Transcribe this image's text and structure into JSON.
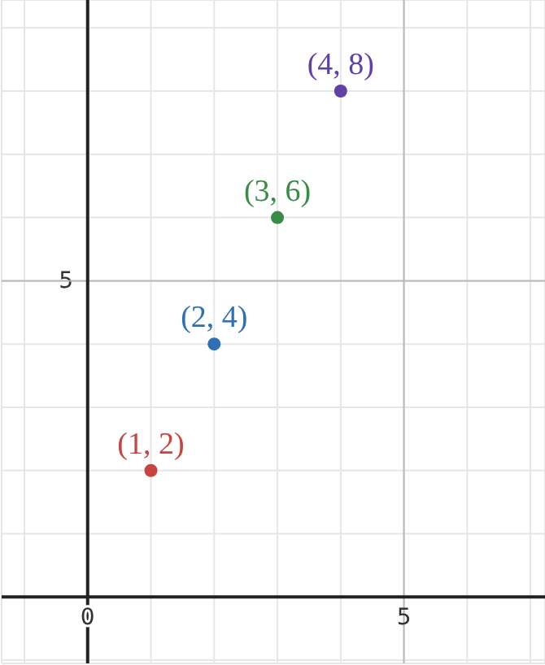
{
  "chart_data": {
    "type": "scatter",
    "x": [
      1,
      2,
      3,
      4
    ],
    "values": [
      2,
      4,
      6,
      8
    ],
    "colors": [
      "#c74440",
      "#2d70b3",
      "#388c46",
      "#6042a6"
    ],
    "value_labels": [
      "(1, 2)",
      "(2, 4)",
      "(3, 6)",
      "(4, 8)"
    ],
    "xlim": [
      -1.36,
      7.23
    ],
    "ylim": [
      -1.05,
      9.44
    ],
    "xticks": [
      {
        "value": -1,
        "label": null
      },
      0,
      {
        "value": 1,
        "label": null
      },
      {
        "value": 2,
        "label": null
      },
      {
        "value": 3,
        "label": null
      },
      {
        "value": 4,
        "label": null
      },
      5,
      {
        "value": 6,
        "label": null
      },
      {
        "value": 7,
        "label": null
      }
    ],
    "yticks": [
      {
        "value": -1,
        "label": null
      },
      {
        "value": 0,
        "label": null
      },
      {
        "value": 1,
        "label": null
      },
      {
        "value": 2,
        "label": null
      },
      {
        "value": 3,
        "label": null
      },
      {
        "value": 4,
        "label": null
      },
      {
        "value": 5,
        "label": null
      },
      {
        "value": 6,
        "label": null
      },
      {
        "value": 7,
        "label": null
      },
      {
        "value": 8,
        "label": null
      },
      {
        "value": 9,
        "label": null
      }
    ],
    "annotations": [
      "5"
    ],
    "grid": true,
    "marker": "circle"
  }
}
